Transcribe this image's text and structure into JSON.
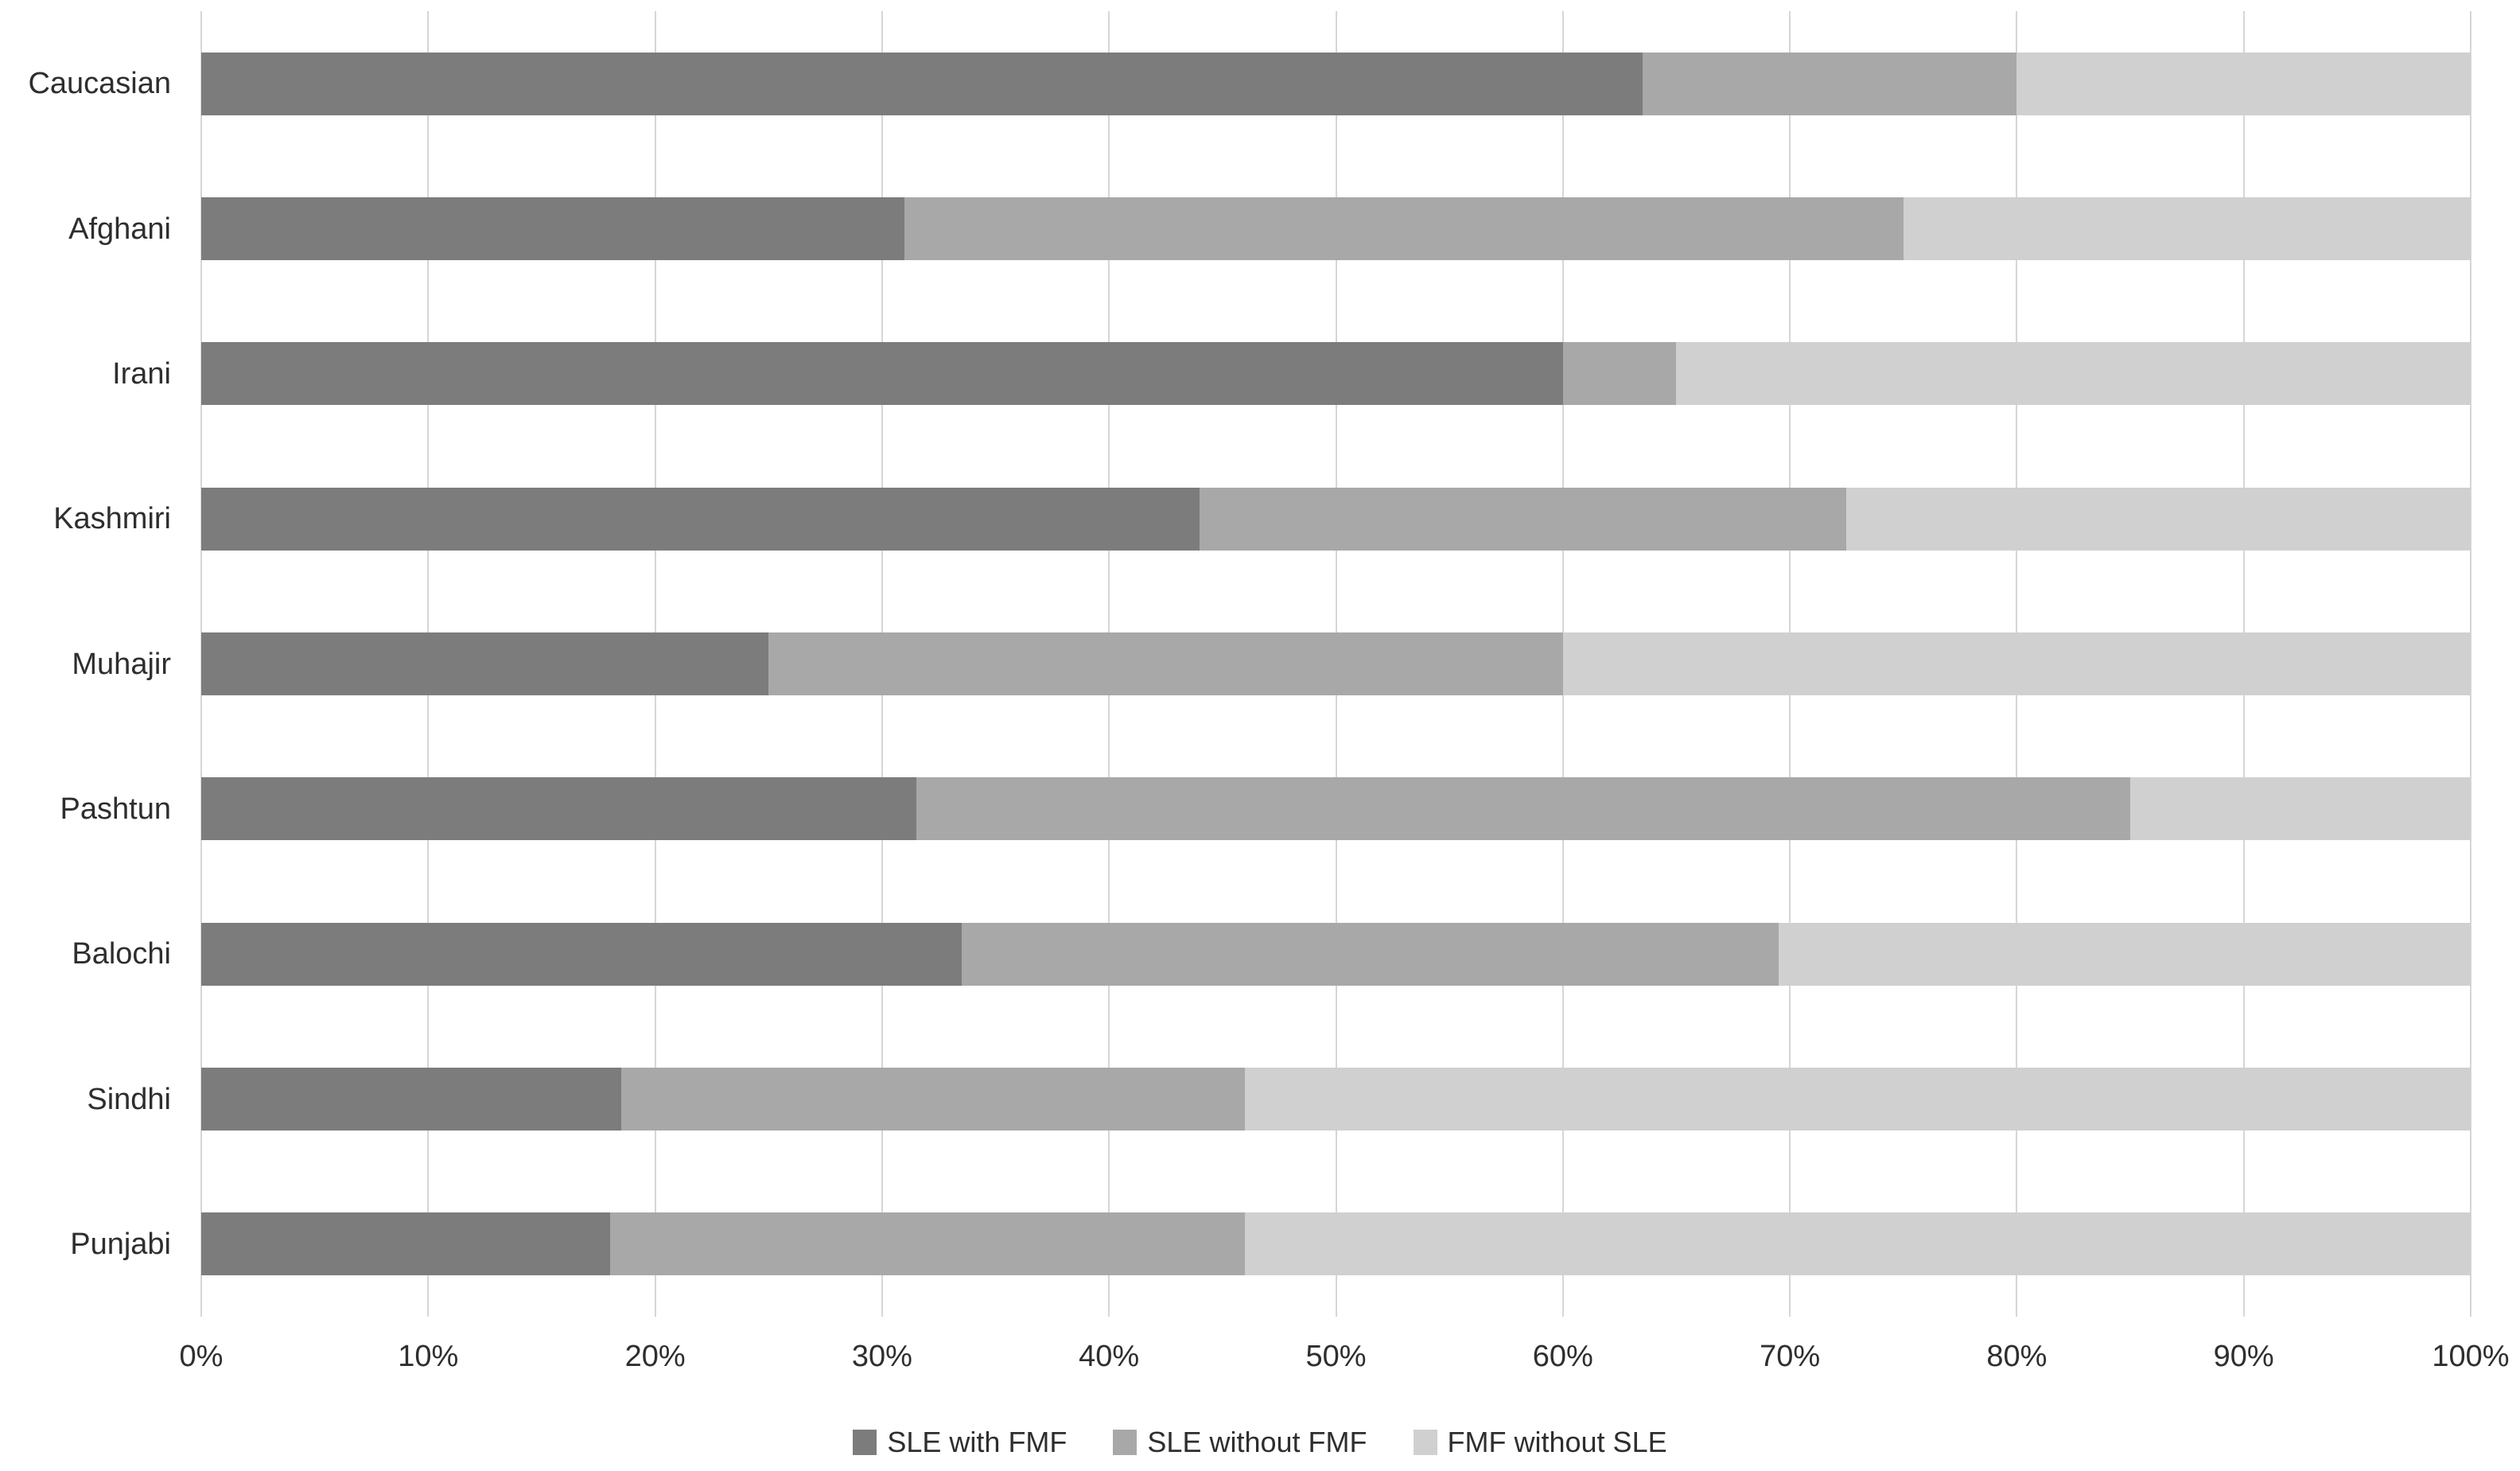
{
  "chart_data": {
    "type": "bar",
    "variant": "horizontal-stacked",
    "title": "",
    "xlabel": "",
    "ylabel": "",
    "xlim": [
      0,
      100
    ],
    "grid": "vertical-only",
    "legend_position": "bottom-center",
    "categories": [
      "Caucasian",
      "Afghani",
      "Irani",
      "Kashmiri",
      "Muhajir",
      "Pashtun",
      "Balochi",
      "Sindhi",
      "Punjabi"
    ],
    "series": [
      {
        "name": "SLE with FMF",
        "color": "#7c7c7c",
        "values": [
          63.5,
          31.0,
          60.0,
          44.0,
          25.0,
          31.5,
          33.5,
          18.5,
          18.0
        ]
      },
      {
        "name": "SLE without FMF",
        "color": "#a8a8a8",
        "values": [
          16.5,
          44.0,
          5.0,
          28.5,
          35.0,
          53.5,
          36.0,
          27.5,
          28.0
        ]
      },
      {
        "name": "FMF without SLE",
        "color": "#d0d0d0",
        "values": [
          20.0,
          25.0,
          35.0,
          27.5,
          40.0,
          15.0,
          30.5,
          54.0,
          54.0
        ]
      }
    ],
    "x_ticks": [
      "0%",
      "10%",
      "20%",
      "30%",
      "40%",
      "50%",
      "60%",
      "70%",
      "80%",
      "90%",
      "100%"
    ],
    "gridline_color": "#d6d6d6",
    "text_color": "#2e2e2e",
    "background_color": "#ffffff"
  },
  "legend": {
    "items": [
      {
        "label": "SLE with FMF"
      },
      {
        "label": "SLE without FMF"
      },
      {
        "label": "FMF without SLE"
      }
    ]
  }
}
